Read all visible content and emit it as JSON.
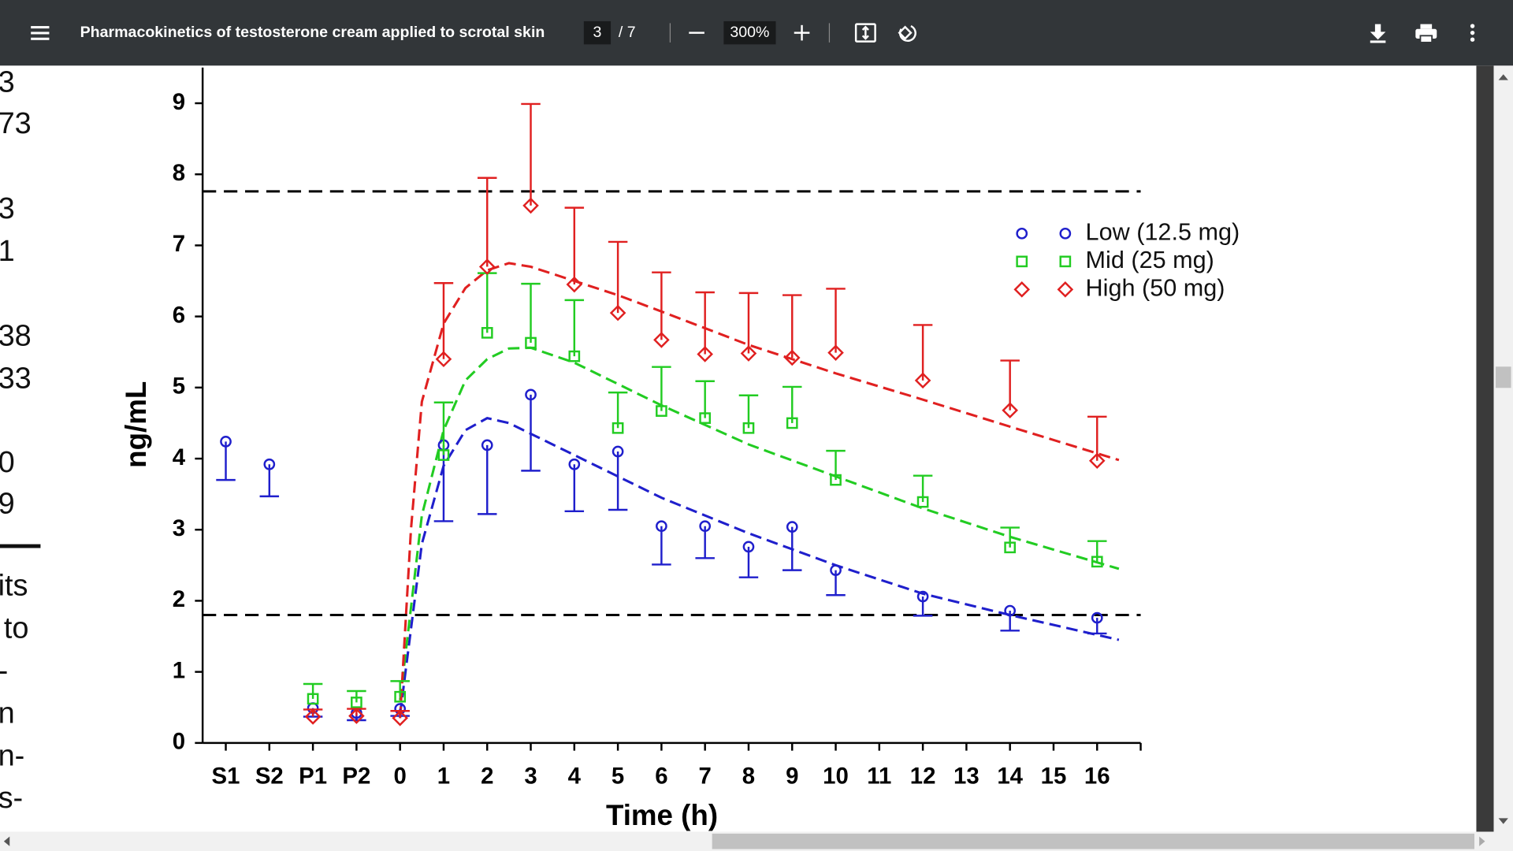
{
  "toolbar": {
    "title": "Pharmacokinetics of testosterone cream applied to scrotal skin",
    "page": "3",
    "page_total": "/ 7",
    "zoom": "300%"
  },
  "left_text": [
    "3",
    "73",
    "3",
    "1",
    "38",
    "33",
    "0",
    "9",
    "its",
    "to",
    "-",
    "n",
    "n-",
    "s-"
  ],
  "chart_data": {
    "type": "scatter",
    "x_label": "Time (h)",
    "y_label": "ng/mL",
    "categories": [
      "S1",
      "S2",
      "P1",
      "P2",
      "0",
      "1",
      "2",
      "3",
      "4",
      "5",
      "6",
      "7",
      "8",
      "9",
      "10",
      "11",
      "12",
      "13",
      "14",
      "15",
      "16"
    ],
    "ylim": [
      0,
      9
    ],
    "yticks": [
      0,
      1,
      2,
      3,
      4,
      5,
      6,
      7,
      8,
      9
    ],
    "legend": "upper right",
    "reference_lines": [
      7.76,
      1.8
    ],
    "series": [
      {
        "name": "Low (12.5 mg)",
        "color": "#1f1fcc",
        "marker": "circle",
        "error_direction": "down",
        "values": [
          4.24,
          3.92,
          0.49,
          0.42,
          0.48,
          4.19,
          4.19,
          4.9,
          3.92,
          4.1,
          3.05,
          3.05,
          2.76,
          3.04,
          2.43,
          null,
          2.06,
          null,
          1.86,
          null,
          1.76
        ],
        "errors": [
          0.54,
          0.45,
          0.12,
          0.1,
          0.1,
          1.07,
          0.97,
          1.07,
          0.66,
          0.82,
          0.54,
          0.45,
          0.43,
          0.61,
          0.35,
          null,
          0.27,
          null,
          0.28,
          null,
          0.22
        ]
      },
      {
        "name": "Mid (25 mg)",
        "color": "#22cc22",
        "marker": "square",
        "error_direction": "up",
        "values": [
          null,
          null,
          0.62,
          0.57,
          0.65,
          4.05,
          5.77,
          5.63,
          5.44,
          4.43,
          4.67,
          4.57,
          4.43,
          4.5,
          3.7,
          null,
          3.39,
          null,
          2.75,
          null,
          2.55
        ],
        "errors": [
          null,
          null,
          0.21,
          0.16,
          0.22,
          0.74,
          0.84,
          0.83,
          0.79,
          0.5,
          0.62,
          0.52,
          0.46,
          0.51,
          0.41,
          null,
          0.37,
          null,
          0.28,
          null,
          0.29
        ]
      },
      {
        "name": "High (50 mg)",
        "color": "#e02020",
        "marker": "diamond",
        "error_direction": "up",
        "values": [
          null,
          null,
          0.37,
          0.38,
          0.35,
          5.4,
          6.7,
          7.56,
          6.45,
          6.05,
          5.67,
          5.47,
          5.48,
          5.42,
          5.49,
          null,
          5.1,
          null,
          4.68,
          null,
          3.97
        ],
        "errors": [
          null,
          null,
          0.1,
          0.1,
          0.1,
          1.07,
          1.25,
          1.43,
          1.08,
          1.0,
          0.95,
          0.87,
          0.85,
          0.88,
          0.9,
          null,
          0.78,
          null,
          0.7,
          null,
          0.62
        ]
      }
    ],
    "fits": [
      {
        "color": "#1f1fcc",
        "x": [
          0,
          0.5,
          1,
          1.5,
          2,
          2.5,
          3,
          4,
          5,
          6,
          8,
          10,
          12,
          14,
          16.5
        ],
        "values": [
          0.4,
          2.8,
          3.9,
          4.4,
          4.57,
          4.5,
          4.35,
          4.05,
          3.75,
          3.45,
          2.95,
          2.5,
          2.1,
          1.8,
          1.45
        ]
      },
      {
        "color": "#22cc22",
        "x": [
          0,
          0.5,
          1,
          1.5,
          2,
          2.5,
          3,
          4,
          5,
          6,
          8,
          10,
          12,
          14,
          16.5
        ],
        "values": [
          0.6,
          3.2,
          4.4,
          5.1,
          5.4,
          5.55,
          5.56,
          5.35,
          5.05,
          4.75,
          4.2,
          3.75,
          3.3,
          2.9,
          2.45
        ]
      },
      {
        "color": "#e02020",
        "x": [
          0,
          0.25,
          0.5,
          1,
          1.5,
          2,
          2.5,
          3,
          4,
          5,
          6,
          8,
          10,
          12,
          14,
          16.5
        ],
        "values": [
          0.35,
          3.0,
          4.8,
          5.9,
          6.4,
          6.65,
          6.75,
          6.7,
          6.5,
          6.3,
          6.07,
          5.6,
          5.2,
          4.83,
          4.45,
          3.98
        ]
      }
    ]
  }
}
